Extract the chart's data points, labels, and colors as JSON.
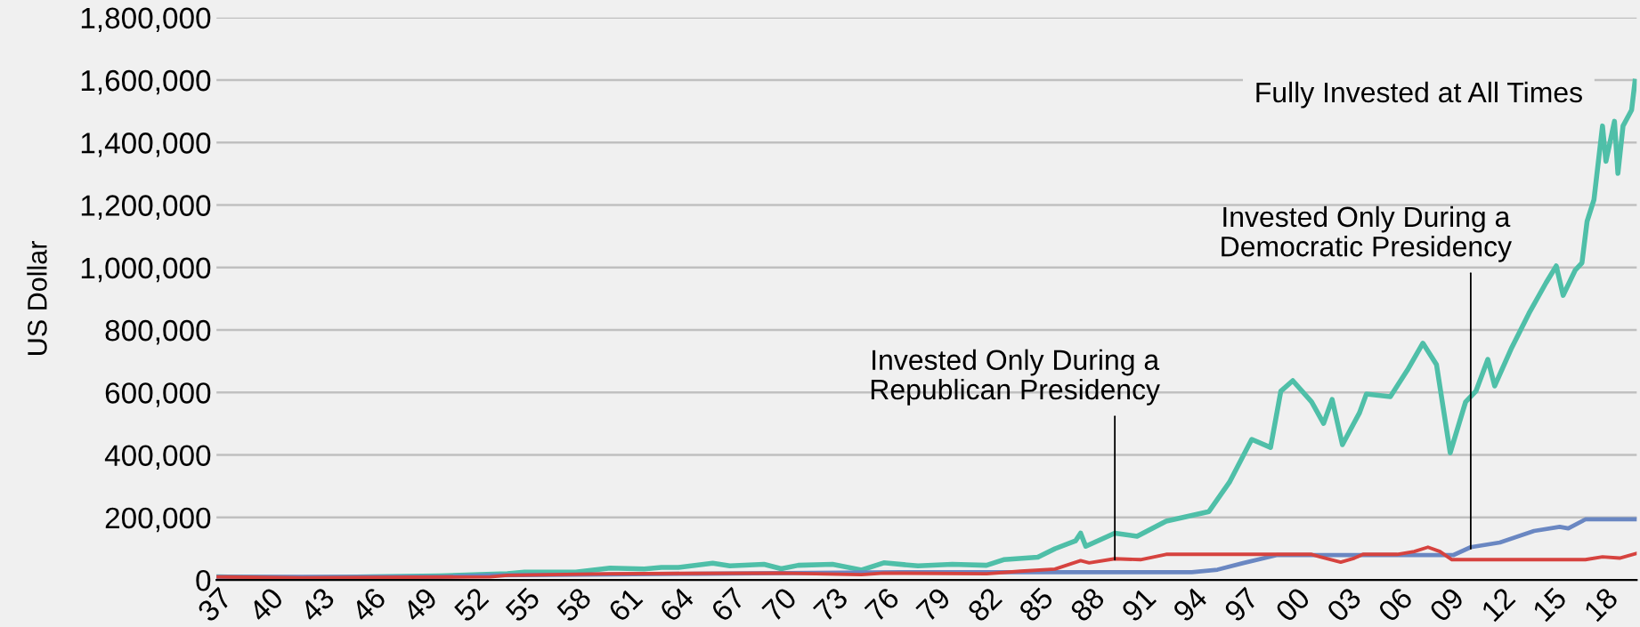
{
  "chart_data": {
    "type": "line",
    "ylabel": "US Dollar",
    "xlim": [
      1937,
      2020
    ],
    "xticks": [
      {
        "value": 1937,
        "label": "37"
      },
      {
        "value": 1940,
        "label": "40"
      },
      {
        "value": 1943,
        "label": "43"
      },
      {
        "value": 1946,
        "label": "46"
      },
      {
        "value": 1949,
        "label": "49"
      },
      {
        "value": 1952,
        "label": "52"
      },
      {
        "value": 1955,
        "label": "55"
      },
      {
        "value": 1958,
        "label": "58"
      },
      {
        "value": 1961,
        "label": "61"
      },
      {
        "value": 1964,
        "label": "64"
      },
      {
        "value": 1967,
        "label": "67"
      },
      {
        "value": 1970,
        "label": "70"
      },
      {
        "value": 1973,
        "label": "73"
      },
      {
        "value": 1976,
        "label": "76"
      },
      {
        "value": 1979,
        "label": "79"
      },
      {
        "value": 1982,
        "label": "82"
      },
      {
        "value": 1985,
        "label": "85"
      },
      {
        "value": 1988,
        "label": "88"
      },
      {
        "value": 1991,
        "label": "91"
      },
      {
        "value": 1994,
        "label": "94"
      },
      {
        "value": 1997,
        "label": "97"
      },
      {
        "value": 2000,
        "label": "00"
      },
      {
        "value": 2003,
        "label": "03"
      },
      {
        "value": 2006,
        "label": "06"
      },
      {
        "value": 2009,
        "label": "09"
      },
      {
        "value": 2012,
        "label": "12"
      },
      {
        "value": 2015,
        "label": "15"
      },
      {
        "value": 2018,
        "label": "18"
      }
    ],
    "ylim": [
      0,
      1800000
    ],
    "yticks": [
      0,
      {
        "value": 200000,
        "label": "200,000"
      },
      {
        "value": 400000,
        "label": "400,000"
      },
      {
        "value": 600000,
        "label": "600,000"
      },
      {
        "value": 800000,
        "label": "800,000"
      },
      {
        "value": 1000000,
        "label": "1,000,000"
      },
      {
        "value": 1200000,
        "label": "1,200,000"
      },
      {
        "value": 1400000,
        "label": "1,400,000"
      },
      {
        "value": 1600000,
        "label": "1,600,000"
      },
      {
        "value": 1800000,
        "label": "1,800,000"
      }
    ],
    "grid": "y",
    "legend": false,
    "marker": "none",
    "line_style": "solid",
    "series": [
      {
        "color": "#4fbfa8",
        "x": [
          1937,
          1942,
          1946,
          1950,
          1954,
          1955,
          1958,
          1960,
          1962,
          1963,
          1964,
          1966,
          1967,
          1969,
          1970,
          1971,
          1973,
          1974.7,
          1976,
          1978,
          1980,
          1982,
          1983,
          1985,
          1986,
          1987.2,
          1987.5,
          1987.8,
          1989.5,
          1990.8,
          1992.5,
          1995,
          1996.2,
          1997.5,
          1998.6,
          1999.2,
          1999.9,
          2001,
          2001.7,
          2002.2,
          2002.8,
          2003.8,
          2004.2,
          2005.6,
          2006.6,
          2007.5,
          2008.3,
          2009.1,
          2010,
          2010.6,
          2011.3,
          2011.7,
          2012.7,
          2013.7,
          2014.7,
          2015.3,
          2015.7,
          2016.4,
          2016.8,
          2017.1,
          2017.5,
          2018,
          2018.2,
          2018.7,
          2018.9,
          2019.2,
          2019.7,
          2019.9
        ],
        "values": [
          10000,
          7000,
          10000,
          13000,
          20000,
          25000,
          25000,
          38000,
          35000,
          40000,
          40000,
          54000,
          45000,
          50000,
          36000,
          47000,
          50000,
          32000,
          55000,
          45000,
          50000,
          47000,
          65000,
          73000,
          100000,
          125000,
          150000,
          108000,
          150000,
          140000,
          188000,
          219000,
          313000,
          450000,
          424000,
          604000,
          638000,
          570000,
          501000,
          578000,
          433000,
          535000,
          595000,
          587000,
          672000,
          758000,
          689000,
          407000,
          570000,
          604000,
          706000,
          621000,
          744000,
          853000,
          951000,
          1005000,
          911000,
          991000,
          1015000,
          1148000,
          1217000,
          1453000,
          1340000,
          1468000,
          1301000,
          1453000,
          1504000,
          1596000
        ]
      },
      {
        "color": "#6a87c2",
        "x": [
          1937,
          1950,
          1953,
          1960,
          1965,
          1977,
          1994,
          1995.5,
          1997,
          1999,
          2009.3,
          2010.3,
          2012,
          2014,
          2015.5,
          2016,
          2017,
          2020
        ],
        "values": [
          10000,
          10000,
          15000,
          18000,
          20000,
          25000,
          25000,
          33000,
          54000,
          80000,
          80000,
          105000,
          120000,
          157000,
          170000,
          165000,
          194000,
          194000
        ]
      },
      {
        "color": "#d6433f",
        "x": [
          1937,
          1942,
          1953,
          1954,
          1960,
          1970,
          1974.7,
          1976,
          1982,
          1984,
          1986,
          1987.5,
          1988,
          1989.5,
          1991,
          1992.5,
          2001,
          2001.5,
          2002.7,
          2003.5,
          2004,
          2006,
          2007,
          2007.8,
          2008.5,
          2009.2,
          2017,
          2018,
          2019,
          2020
        ],
        "values": [
          10000,
          7000,
          10000,
          15000,
          20000,
          22000,
          17000,
          22000,
          20000,
          28000,
          35000,
          62000,
          55000,
          68000,
          65000,
          82000,
          82000,
          74000,
          57000,
          70000,
          82000,
          82000,
          91000,
          105000,
          91000,
          65000,
          65000,
          74000,
          70000,
          85000
        ]
      }
    ],
    "annotations": [
      {
        "text": "Invested Only During a\nRepublican Presidency",
        "x": 1989.5,
        "y": 65000
      },
      {
        "text": "Invested Only During a\nDemocratic Presidency",
        "x": 2010.3,
        "y": 100000
      },
      {
        "text": "Fully Invested at All Times",
        "x": 2019.9,
        "y": 1596000
      }
    ]
  }
}
